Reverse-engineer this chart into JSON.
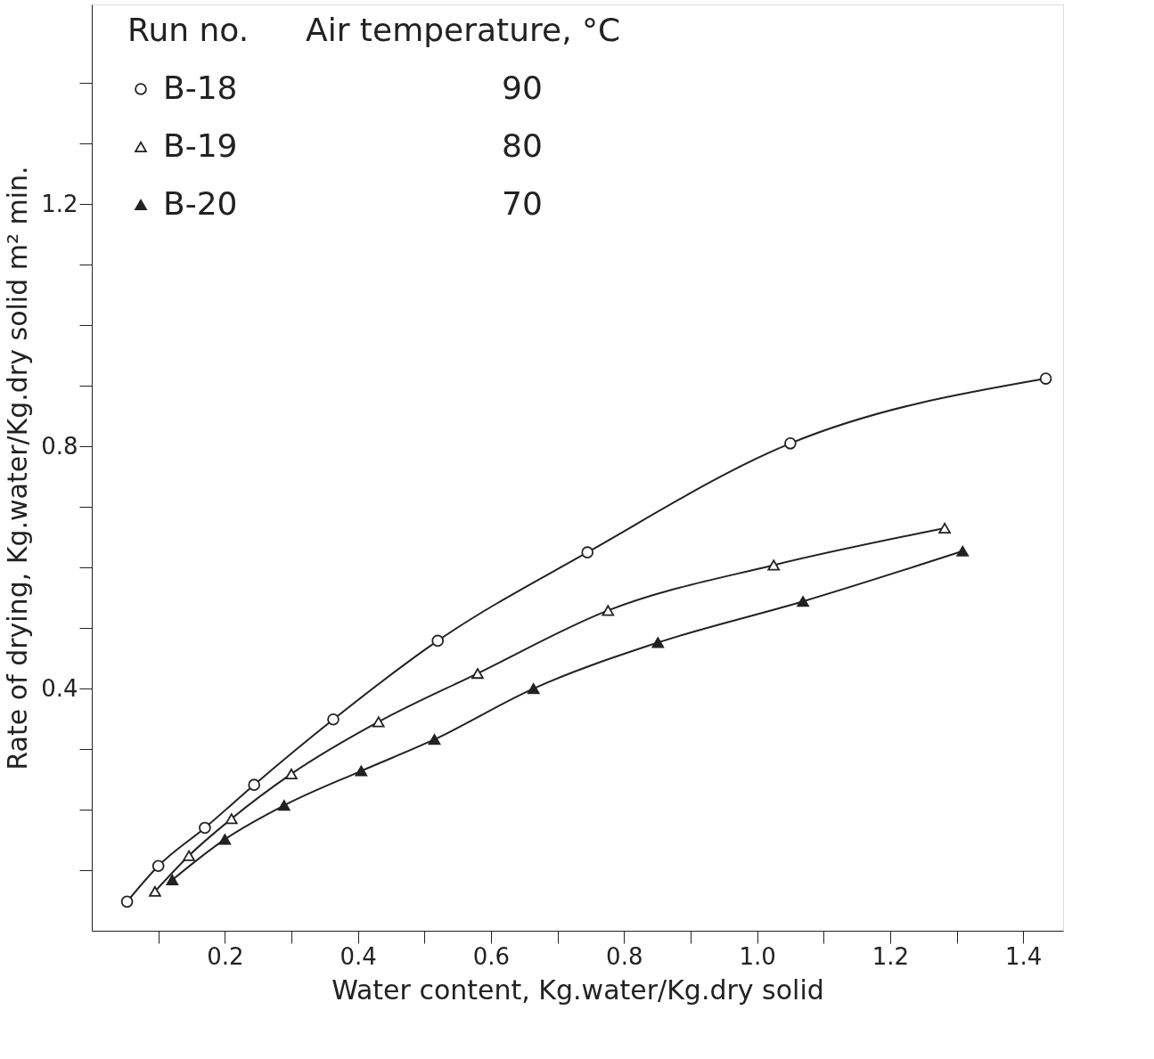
{
  "chart_data": {
    "type": "line",
    "xlabel": "Water content, Kg.water/Kg.dry solid",
    "ylabel": "Rate of drying, Kg.water/Kg.dry solid m² min.",
    "legend_title": "Run no.",
    "annotations": [
      "Air temperature, °C",
      "90",
      "80",
      "70"
    ],
    "series": [
      {
        "name": "B-18",
        "color": "#ffffff",
        "marker": "circle",
        "x": [
          0.053,
          0.1,
          0.17,
          0.244,
          0.363,
          0.52,
          0.745,
          1.05,
          1.434
        ],
        "values": [
          0.048,
          0.107,
          0.17,
          0.241,
          0.349,
          0.479,
          0.625,
          0.805,
          0.912
        ]
      },
      {
        "name": "B-19",
        "color": "#ffffff",
        "marker": "triangle",
        "x": [
          0.095,
          0.146,
          0.21,
          0.3,
          0.431,
          0.58,
          0.776,
          1.025,
          1.282
        ],
        "values": [
          0.065,
          0.124,
          0.185,
          0.259,
          0.345,
          0.425,
          0.529,
          0.604,
          0.665
        ]
      },
      {
        "name": "B-20",
        "color": "#222222",
        "marker": "triangle",
        "x": [
          0.121,
          0.2,
          0.289,
          0.405,
          0.515,
          0.664,
          0.851,
          1.069,
          1.309
        ],
        "values": [
          0.084,
          0.151,
          0.207,
          0.264,
          0.316,
          0.4,
          0.476,
          0.544,
          0.627
        ]
      }
    ],
    "xlim": [
      0,
      1.46
    ],
    "xticks": [
      {
        "value": 0.1,
        "label": null
      },
      0.2,
      {
        "value": 0.3,
        "label": null
      },
      0.4,
      {
        "value": 0.5,
        "label": null
      },
      0.6,
      {
        "value": 0.7,
        "label": null
      },
      0.8,
      {
        "value": 0.9,
        "label": null
      },
      {
        "value": 1.0,
        "label": "1.0"
      },
      {
        "value": 1.1,
        "label": null
      },
      1.2,
      {
        "value": 1.3,
        "label": null
      },
      1.4
    ],
    "ylim": [
      0,
      1.53
    ],
    "yticks": [
      {
        "value": 0.1,
        "label": null
      },
      {
        "value": 0.2,
        "label": null
      },
      {
        "value": 0.3,
        "label": null
      },
      0.4,
      {
        "value": 0.5,
        "label": null
      },
      {
        "value": 0.6,
        "label": null
      },
      {
        "value": 0.7,
        "label": null
      },
      0.8,
      {
        "value": 0.9,
        "label": null
      },
      {
        "value": 1.0,
        "label": null
      },
      {
        "value": 1.1,
        "label": null
      },
      1.2,
      {
        "value": 1.3,
        "label": null
      },
      {
        "value": 1.4,
        "label": null
      }
    ],
    "grid": false,
    "legend": "top left",
    "line_style": "solid"
  }
}
